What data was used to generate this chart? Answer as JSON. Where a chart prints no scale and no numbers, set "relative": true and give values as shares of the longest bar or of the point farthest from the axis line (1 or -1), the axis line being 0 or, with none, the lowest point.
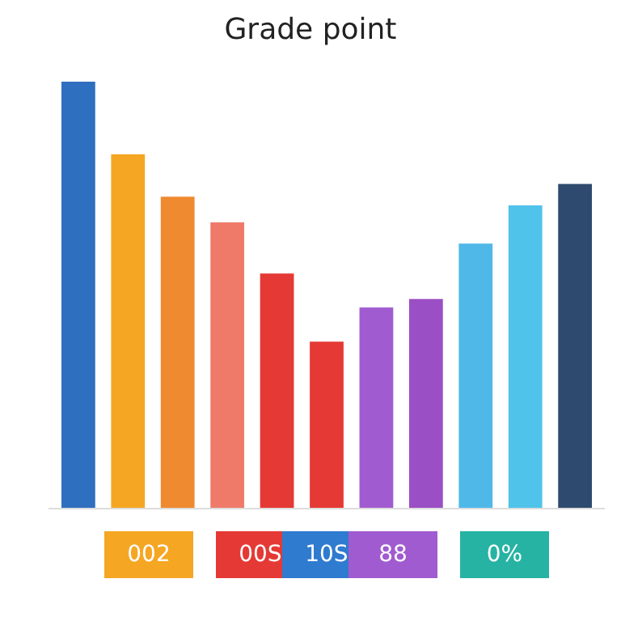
{
  "chart_data": {
    "type": "bar",
    "title": "Grade point",
    "relative": true,
    "categories": [
      null,
      null,
      null,
      null,
      null,
      null,
      null,
      null,
      null,
      null,
      null
    ],
    "values": [
      1,
      0.83,
      0.73,
      0.67,
      0.55,
      0.39,
      0.47,
      0.49,
      0.62,
      0.71,
      0.76
    ],
    "colors": [
      "#2f6fc0",
      "#f5a623",
      "#f08a30",
      "#f07a6a",
      "#e53935",
      "#e53935",
      "#a15bd0",
      "#9b4fc4",
      "#4fb8e8",
      "#4fc3ea",
      "#2e4a6e"
    ],
    "annotations": [
      "002",
      "00S",
      "10S",
      "88",
      "0%"
    ],
    "legend": false
  }
}
